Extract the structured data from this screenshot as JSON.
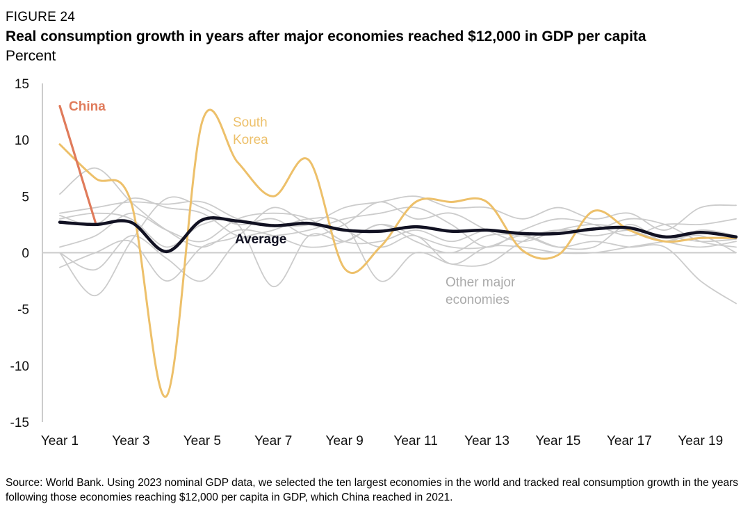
{
  "header": {
    "figure_label": "FIGURE 24",
    "title": "Real consumption growth in years after major economies reached $12,000 in GDP per capita",
    "unit": "Percent"
  },
  "footer": {
    "source": "Source: World Bank. Using 2023 nominal GDP data, we selected the ten largest economies in the world and tracked real consumption growth in the years following those economies reaching $12,000 per capita in GDP, which China reached in 2021."
  },
  "colors": {
    "china": "#E07B5B",
    "south_korea": "#EDC06A",
    "average": "#111122",
    "others": "#CCCCCC",
    "axis": "#CCCCCC"
  },
  "chart_data": {
    "type": "line",
    "title": "Real consumption growth in years after major economies reached $12,000 in GDP per capita",
    "ylabel": "Percent",
    "xlabel": "",
    "ylim": [
      -15,
      15
    ],
    "yticks": [
      15,
      10,
      5,
      0,
      -5,
      -10,
      -15
    ],
    "xlim": [
      1,
      20
    ],
    "x": [
      1,
      2,
      3,
      4,
      5,
      6,
      7,
      8,
      9,
      10,
      11,
      12,
      13,
      14,
      15,
      16,
      17,
      18,
      19,
      20
    ],
    "x_tick_labels": [
      "Year 1",
      "Year 3",
      "Year 5",
      "Year 7",
      "Year 9",
      "Year 11",
      "Year 13",
      "Year 15",
      "Year 17",
      "Year 19"
    ],
    "x_tick_values": [
      1,
      3,
      5,
      7,
      9,
      11,
      13,
      15,
      17,
      19
    ],
    "grid": false,
    "series": [
      {
        "name": "Other major economies",
        "role": "other",
        "values": [
          5.2,
          7.5,
          4.5,
          2.0,
          0.5,
          2.0,
          1.5,
          0.5,
          1.0,
          2.5,
          1.5,
          0.5,
          0.5,
          1.5,
          0.5,
          0.5,
          2.5,
          1.0,
          2.0,
          1.5
        ]
      },
      {
        "name": "Other major economies",
        "role": "other",
        "values": [
          3.5,
          4.0,
          4.5,
          4.3,
          4.5,
          3.0,
          2.5,
          2.5,
          4.0,
          4.5,
          5.0,
          4.0,
          4.0,
          3.0,
          4.0,
          3.0,
          3.5,
          2.0,
          4.0,
          4.2
        ]
      },
      {
        "name": "Other major economies",
        "role": "other",
        "values": [
          0.0,
          -3.8,
          1.0,
          4.8,
          4.0,
          2.5,
          3.0,
          1.5,
          2.5,
          4.5,
          3.0,
          3.5,
          2.0,
          1.0,
          2.0,
          2.5,
          2.0,
          1.0,
          0.5,
          1.0
        ]
      },
      {
        "name": "Other major economies",
        "role": "other",
        "values": [
          3.0,
          3.5,
          3.0,
          0.5,
          2.5,
          2.5,
          -3.0,
          1.5,
          1.0,
          2.5,
          1.0,
          0.0,
          1.5,
          1.5,
          0.5,
          1.0,
          0.5,
          0.5,
          -2.5,
          -4.5
        ]
      },
      {
        "name": "Other major economies",
        "role": "other",
        "values": [
          -1.3,
          0.0,
          1.0,
          -2.5,
          0.5,
          1.5,
          4.0,
          2.5,
          2.0,
          0.5,
          1.5,
          -1.0,
          0.5,
          0.5,
          0.0,
          0.0,
          0.5,
          1.0,
          1.5,
          0.0
        ]
      },
      {
        "name": "Other major economies",
        "role": "other",
        "values": [
          0.0,
          -1.5,
          1.5,
          -0.5,
          -2.5,
          1.0,
          2.0,
          3.0,
          2.5,
          -2.5,
          0.0,
          -1.0,
          -1.0,
          1.0,
          2.0,
          2.0,
          3.0,
          2.5,
          1.0,
          0.5
        ]
      },
      {
        "name": "Other major economies",
        "role": "other",
        "values": [
          0.5,
          1.5,
          3.5,
          2.0,
          1.0,
          3.0,
          3.5,
          3.0,
          1.0,
          1.0,
          2.0,
          1.0,
          2.0,
          1.5,
          2.0,
          1.5,
          2.0,
          1.5,
          1.0,
          1.2
        ]
      },
      {
        "name": "Other major economies",
        "role": "other",
        "values": [
          3.3,
          2.5,
          4.8,
          4.0,
          3.5,
          1.5,
          1.5,
          2.0,
          3.0,
          3.5,
          4.0,
          2.5,
          0.5,
          2.0,
          3.0,
          2.5,
          1.5,
          2.5,
          2.5,
          3.0
        ]
      },
      {
        "name": "South Korea",
        "role": "highlight",
        "values": [
          9.6,
          6.6,
          4.5,
          -12.7,
          11.6,
          8.0,
          5.0,
          8.2,
          -1.4,
          0.5,
          4.5,
          4.5,
          4.5,
          0.2,
          -0.2,
          3.7,
          2.0,
          1.0,
          1.3,
          1.3
        ]
      },
      {
        "name": "China",
        "role": "china",
        "values": [
          13.0,
          2.7,
          null,
          null,
          null,
          null,
          null,
          null,
          null,
          null,
          null,
          null,
          null,
          null,
          null,
          null,
          null,
          null,
          null,
          null
        ]
      },
      {
        "name": "Average",
        "role": "average",
        "values": [
          2.7,
          2.5,
          2.7,
          0.1,
          2.9,
          2.8,
          2.4,
          2.6,
          2.0,
          1.9,
          2.3,
          1.9,
          2.0,
          1.7,
          1.7,
          2.1,
          2.2,
          1.4,
          1.8,
          1.4
        ]
      }
    ],
    "annotations": [
      {
        "text": "China",
        "series": "China"
      },
      {
        "text": "South",
        "series": "South Korea"
      },
      {
        "text": "Korea",
        "series": "South Korea"
      },
      {
        "text": "Average",
        "series": "Average"
      },
      {
        "text": "Other major",
        "series": "Other major economies"
      },
      {
        "text": "economies",
        "series": "Other major economies"
      }
    ]
  }
}
